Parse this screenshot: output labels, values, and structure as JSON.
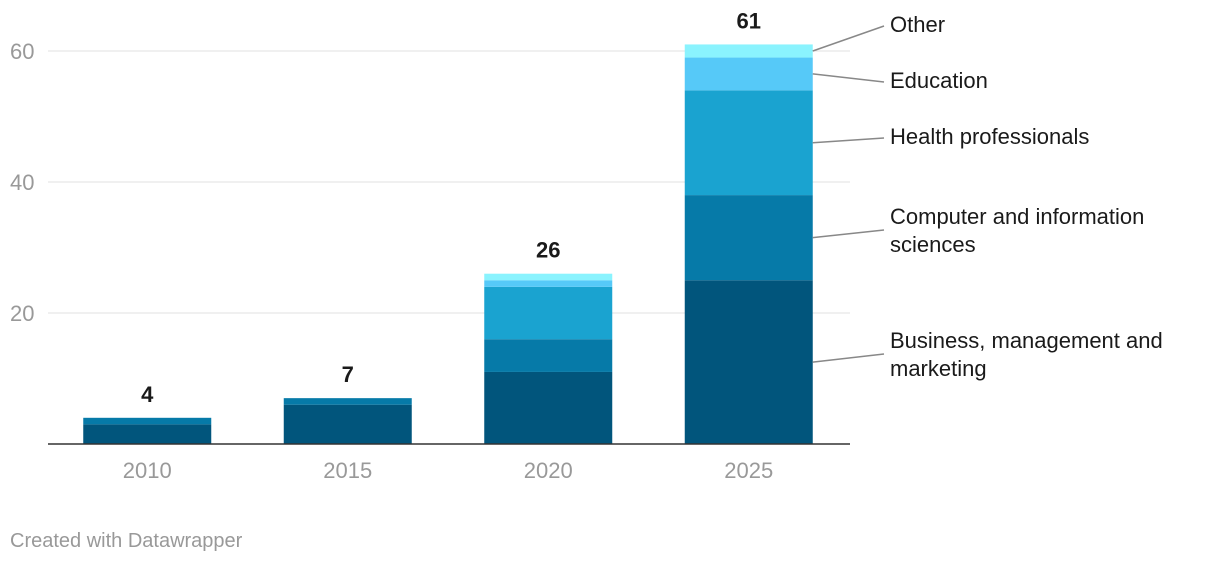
{
  "chart_data": {
    "type": "bar",
    "stacked": true,
    "categories": [
      "2010",
      "2015",
      "2020",
      "2025"
    ],
    "series": [
      {
        "name": "Business, management and marketing",
        "values": [
          3,
          6,
          11,
          25
        ],
        "color": "#01557c"
      },
      {
        "name": "Computer and information sciences",
        "values": [
          1,
          1,
          5,
          13
        ],
        "color": "#067aa8"
      },
      {
        "name": "Health professionals",
        "values": [
          0,
          0,
          8,
          16
        ],
        "color": "#1aa3d0"
      },
      {
        "name": "Education",
        "values": [
          0,
          0,
          1,
          5
        ],
        "color": "#56c9f8"
      },
      {
        "name": "Other",
        "values": [
          0,
          0,
          1,
          2
        ],
        "color": "#8af3fe"
      }
    ],
    "totals": [
      4,
      7,
      26,
      61
    ],
    "y_ticks": [
      20,
      40,
      60
    ],
    "ylim": [
      0,
      65
    ],
    "grid": true,
    "legend_position": "right",
    "title": "",
    "xlabel": "",
    "ylabel": ""
  },
  "footer": {
    "credit": "Created with Datawrapper"
  }
}
